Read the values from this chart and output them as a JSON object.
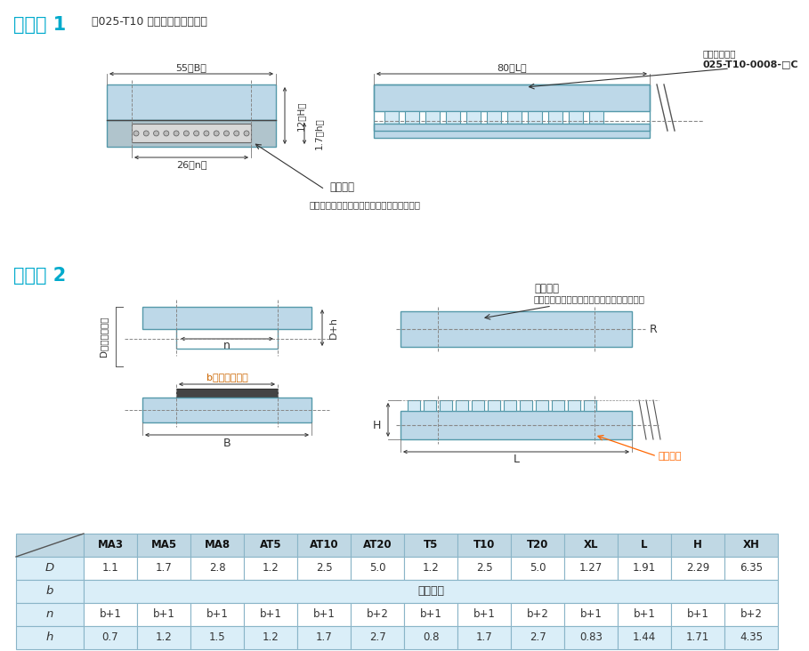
{
  "title1": "形状例 1",
  "subtitle1": "（025-T10 リニアタイプの例）",
  "title2": "形状例 2",
  "clamp_label": "クランプ型式",
  "clamp_code": "025-T10-0008-□C",
  "aite_label1": "相手部品",
  "aite_sub1": "（図面で指示いただければ製作致します。）",
  "aite_label2": "相手部品",
  "aite_sub2": "（図面で指示いただければ製作致します。）",
  "clamp_label2": "クランプ",
  "R_label": "R",
  "dim_55B": "55（B）",
  "dim_80L": "80（L）",
  "dim_12H": "12（H）",
  "dim_17h": "1.7（h）",
  "dim_26n": "26（n）",
  "dim_Dh": "D+h",
  "dim_n": "n",
  "dim_b": "b（ベルト幅）",
  "dim_B": "B",
  "dim_L": "L",
  "dim_H": "H",
  "dim_D": "D（歯の高さ）",
  "col_headers": [
    "MA3",
    "MA5",
    "MA8",
    "AT5",
    "AT10",
    "AT20",
    "T5",
    "T10",
    "T20",
    "XL",
    "L",
    "H",
    "XH"
  ],
  "row_D": [
    "1.1",
    "1.7",
    "2.8",
    "1.2",
    "2.5",
    "5.0",
    "1.2",
    "2.5",
    "5.0",
    "1.27",
    "1.91",
    "2.29",
    "6.35"
  ],
  "row_b": "ベルト幅",
  "row_n": [
    "b+1",
    "b+1",
    "b+1",
    "b+1",
    "b+1",
    "b+2",
    "b+1",
    "b+1",
    "b+2",
    "b+1",
    "b+1",
    "b+1",
    "b+2"
  ],
  "row_h": [
    "0.7",
    "1.2",
    "1.5",
    "1.2",
    "1.7",
    "2.7",
    "0.8",
    "1.7",
    "2.7",
    "0.83",
    "1.44",
    "1.71",
    "4.35"
  ],
  "row_labels": [
    "D",
    "b",
    "n",
    "h"
  ],
  "light_blue": "#bdd8e8",
  "gray_fill": "#c8c8c8",
  "title_color": "#00aacc",
  "border_color": "#5599aa",
  "dim_color": "#333333",
  "table_header_bg": "#c0d8e4",
  "table_row_bg1": "#daeef8",
  "table_row_bg2": "#ffffff",
  "table_border": "#8ab5c8",
  "dash_color": "#666666",
  "orange_color": "#cc6600"
}
